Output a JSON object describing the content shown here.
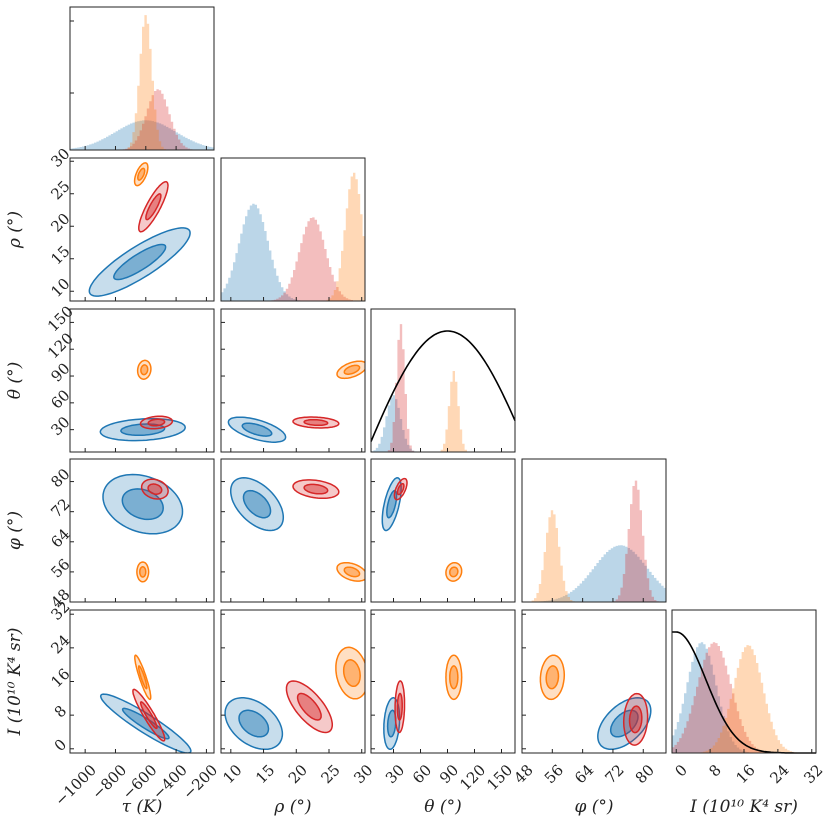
{
  "chart_data": {
    "type": "corner",
    "colors": {
      "blue": "#1f77b4",
      "red": "#d62728",
      "orange": "#ff7f0e",
      "prior": "#000000"
    },
    "series": [
      {
        "name": "blue",
        "color": "#1f77b4"
      },
      {
        "name": "red",
        "color": "#d62728"
      },
      {
        "name": "orange",
        "color": "#ff7f0e"
      }
    ],
    "parameters": [
      {
        "key": "tau",
        "label": "τ (K)",
        "ylabel": "",
        "range": [
          -1100,
          -150
        ],
        "ticks": [
          {
            "v": -1000,
            "t": "−1000"
          },
          {
            "v": -800,
            "t": "−800"
          },
          {
            "v": -600,
            "t": "−600"
          },
          {
            "v": -400,
            "t": "−400"
          },
          {
            "v": -200,
            "t": "−200"
          }
        ]
      },
      {
        "key": "rho",
        "label": "ρ (°)",
        "ylabel": "ρ (°)",
        "range": [
          8.5,
          30.5
        ],
        "ticks": [
          {
            "v": 10,
            "t": "10"
          },
          {
            "v": 15,
            "t": "15"
          },
          {
            "v": 20,
            "t": "20"
          },
          {
            "v": 25,
            "t": "25"
          },
          {
            "v": 30,
            "t": "30"
          }
        ]
      },
      {
        "key": "theta",
        "label": "θ (°)",
        "ylabel": "θ (°)",
        "range": [
          5,
          165
        ],
        "ticks": [
          {
            "v": 30,
            "t": "30"
          },
          {
            "v": 60,
            "t": "60"
          },
          {
            "v": 90,
            "t": "90"
          },
          {
            "v": 120,
            "t": "120"
          },
          {
            "v": 150,
            "t": "150"
          }
        ]
      },
      {
        "key": "phi",
        "label": "φ (°)",
        "ylabel": "φ (°)",
        "range": [
          48,
          86
        ],
        "ticks": [
          {
            "v": 48,
            "t": "48"
          },
          {
            "v": 56,
            "t": "56"
          },
          {
            "v": 64,
            "t": "64"
          },
          {
            "v": 72,
            "t": "72"
          },
          {
            "v": 80,
            "t": "80"
          }
        ]
      },
      {
        "key": "I",
        "label": "I (10¹⁰ K⁴ sr)",
        "ylabel": "I (10¹⁰ K⁴ sr)",
        "range": [
          -1,
          33
        ],
        "ticks": [
          {
            "v": 0,
            "t": "0"
          },
          {
            "v": 8,
            "t": "8"
          },
          {
            "v": 16,
            "t": "16"
          },
          {
            "v": 24,
            "t": "24"
          },
          {
            "v": 32,
            "t": "32"
          }
        ]
      }
    ],
    "marginals": [
      {
        "param": "tau",
        "prior": null,
        "series": [
          {
            "name": "blue",
            "mean": -600,
            "sd": 200,
            "peak": 0.22
          },
          {
            "name": "red",
            "mean": -520,
            "sd": 75,
            "peak": 0.45
          },
          {
            "name": "orange",
            "mean": -600,
            "sd": 40,
            "peak": 1.0
          }
        ]
      },
      {
        "param": "rho",
        "prior": null,
        "series": [
          {
            "name": "blue",
            "mean": 13.5,
            "sd": 2.2,
            "peak": 0.72
          },
          {
            "name": "red",
            "mean": 22.5,
            "sd": 2.0,
            "peak": 0.62
          },
          {
            "name": "orange",
            "mean": 28.8,
            "sd": 1.3,
            "peak": 0.95
          }
        ]
      },
      {
        "param": "theta",
        "prior": "sin",
        "series": [
          {
            "name": "blue",
            "mean": 30,
            "sd": 8,
            "peak": 0.42
          },
          {
            "name": "red",
            "mean": 38,
            "sd": 4.5,
            "peak": 0.95
          },
          {
            "name": "orange",
            "mean": 97,
            "sd": 5,
            "peak": 0.6
          }
        ]
      },
      {
        "param": "phi",
        "prior": null,
        "series": [
          {
            "name": "blue",
            "mean": 74,
            "sd": 7,
            "peak": 0.42
          },
          {
            "name": "red",
            "mean": 78,
            "sd": 1.8,
            "peak": 0.9
          },
          {
            "name": "orange",
            "mean": 56,
            "sd": 1.8,
            "peak": 0.68
          }
        ]
      },
      {
        "param": "I",
        "prior": "halfnormal",
        "prior_sd": 7,
        "series": [
          {
            "name": "blue",
            "mean": 6,
            "sd": 3.5,
            "peak": 0.82
          },
          {
            "name": "red",
            "mean": 9,
            "sd": 4,
            "peak": 0.82
          },
          {
            "name": "orange",
            "mean": 17,
            "sd": 3.5,
            "peak": 0.8
          }
        ]
      }
    ],
    "pairs": [
      {
        "x": "tau",
        "y": "rho",
        "blobs": [
          {
            "name": "blue",
            "cx": -640,
            "cy": 14.5,
            "sx": 190,
            "sy": 3.0,
            "rho": 0.85
          },
          {
            "name": "red",
            "cx": -550,
            "cy": 23,
            "sx": 55,
            "sy": 2.2,
            "rho": 0.85
          },
          {
            "name": "orange",
            "cx": -630,
            "cy": 28,
            "sx": 25,
            "sy": 1.0,
            "rho": 0.6
          }
        ]
      },
      {
        "x": "tau",
        "y": "theta",
        "blobs": [
          {
            "name": "blue",
            "cx": -620,
            "cy": 30,
            "sx": 160,
            "sy": 7,
            "rho": 0.2
          },
          {
            "name": "red",
            "cx": -530,
            "cy": 38,
            "sx": 60,
            "sy": 4,
            "rho": 0.2
          },
          {
            "name": "orange",
            "cx": -610,
            "cy": 97,
            "sx": 25,
            "sy": 6,
            "rho": 0.1
          }
        ]
      },
      {
        "x": "tau",
        "y": "phi",
        "blobs": [
          {
            "name": "blue",
            "cx": -620,
            "cy": 74,
            "sx": 150,
            "sy": 4.5,
            "rho": -0.25
          },
          {
            "name": "red",
            "cx": -540,
            "cy": 78,
            "sx": 50,
            "sy": 1.5,
            "rho": -0.2
          },
          {
            "name": "orange",
            "cx": -620,
            "cy": 56,
            "sx": 22,
            "sy": 1.5,
            "rho": 0
          }
        ]
      },
      {
        "x": "tau",
        "y": "I",
        "blobs": [
          {
            "name": "blue",
            "cx": -600,
            "cy": 6,
            "sx": 170,
            "sy": 4.0,
            "rho": -0.93
          },
          {
            "name": "red",
            "cx": -580,
            "cy": 8,
            "sx": 60,
            "sy": 3.5,
            "rho": -0.93
          },
          {
            "name": "orange",
            "cx": -620,
            "cy": 17,
            "sx": 30,
            "sy": 3.0,
            "rho": -0.9
          }
        ]
      },
      {
        "x": "rho",
        "y": "theta",
        "blobs": [
          {
            "name": "blue",
            "cx": 14,
            "cy": 30,
            "sx": 2.5,
            "sy": 8,
            "rho": -0.6
          },
          {
            "name": "red",
            "cx": 23,
            "cy": 38,
            "sx": 2.0,
            "sy": 3.5,
            "rho": -0.2
          },
          {
            "name": "orange",
            "cx": 28.5,
            "cy": 97,
            "sx": 1.3,
            "sy": 5.5,
            "rho": 0.5
          }
        ]
      },
      {
        "x": "rho",
        "y": "phi",
        "blobs": [
          {
            "name": "blue",
            "cx": 14,
            "cy": 74,
            "sx": 2.3,
            "sy": 4,
            "rho": -0.5
          },
          {
            "name": "red",
            "cx": 23,
            "cy": 78,
            "sx": 2.0,
            "sy": 1.4,
            "rho": -0.3
          },
          {
            "name": "orange",
            "cx": 28.5,
            "cy": 56,
            "sx": 1.3,
            "sy": 1.4,
            "rho": -0.4
          }
        ]
      },
      {
        "x": "rho",
        "y": "I",
        "blobs": [
          {
            "name": "blue",
            "cx": 13.5,
            "cy": 6,
            "sx": 2.5,
            "sy": 3.5,
            "rho": -0.4
          },
          {
            "name": "red",
            "cx": 22,
            "cy": 10,
            "sx": 2.0,
            "sy": 3.5,
            "rho": -0.7
          },
          {
            "name": "orange",
            "cx": 28.5,
            "cy": 18,
            "sx": 1.4,
            "sy": 3.5,
            "rho": -0.2
          }
        ]
      },
      {
        "x": "theta",
        "y": "phi",
        "blobs": [
          {
            "name": "blue",
            "cx": 28,
            "cy": 74,
            "sx": 6,
            "sy": 4,
            "rho": 0.6
          },
          {
            "name": "red",
            "cx": 38,
            "cy": 78,
            "sx": 4,
            "sy": 1.6,
            "rho": 0.6
          },
          {
            "name": "orange",
            "cx": 97,
            "cy": 56,
            "sx": 5,
            "sy": 1.4,
            "rho": 0.1
          }
        ]
      },
      {
        "x": "theta",
        "y": "I",
        "blobs": [
          {
            "name": "blue",
            "cx": 28,
            "cy": 6,
            "sx": 5,
            "sy": 3.5,
            "rho": 0.2
          },
          {
            "name": "red",
            "cx": 37,
            "cy": 10,
            "sx": 3,
            "sy": 3.5,
            "rho": 0.1
          },
          {
            "name": "orange",
            "cx": 97,
            "cy": 17,
            "sx": 5,
            "sy": 3,
            "rho": 0
          }
        ]
      },
      {
        "x": "phi",
        "y": "I",
        "blobs": [
          {
            "name": "blue",
            "cx": 75,
            "cy": 6,
            "sx": 4,
            "sy": 3.5,
            "rho": 0.5
          },
          {
            "name": "red",
            "cx": 78,
            "cy": 7,
            "sx": 1.8,
            "sy": 3.5,
            "rho": 0.1
          },
          {
            "name": "orange",
            "cx": 56,
            "cy": 17,
            "sx": 1.8,
            "sy": 3,
            "rho": 0.1
          }
        ]
      }
    ]
  }
}
